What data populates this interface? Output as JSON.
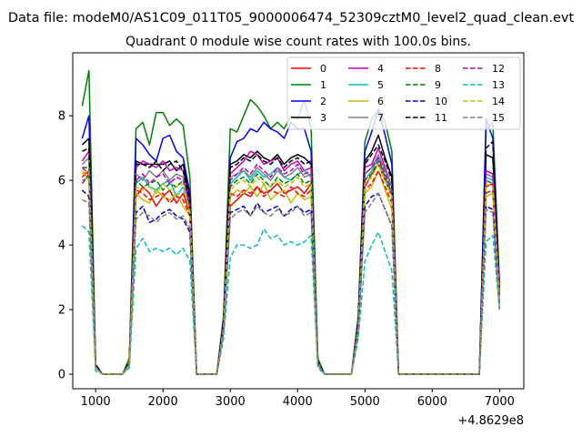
{
  "chart_data": {
    "type": "line",
    "suptitle": "Data file: modeM0/AS1C09_011T05_9000006474_52309cztM0_level2_quad_clean.evt",
    "title": "Quadrant 0 module wise count rates with 100.0s bins.",
    "xlabel": "",
    "ylabel": "",
    "x_offset_label": "+4.8629e8",
    "xlim": [
      660,
      7360
    ],
    "ylim": [
      -0.45,
      9.95
    ],
    "xticks": [
      1000,
      2000,
      3000,
      4000,
      5000,
      6000,
      7000
    ],
    "yticks": [
      0,
      2,
      4,
      6,
      8
    ],
    "grid": false,
    "legend_position": "top-right",
    "legend_columns": 4,
    "x": [
      800,
      900,
      1000,
      1100,
      1200,
      1300,
      1400,
      1500,
      1600,
      1700,
      1800,
      1900,
      2000,
      2100,
      2200,
      2300,
      2400,
      2500,
      2600,
      2700,
      2800,
      2900,
      3000,
      3100,
      3200,
      3300,
      3400,
      3500,
      3600,
      3700,
      3800,
      3900,
      4000,
      4100,
      4200,
      4300,
      4400,
      4500,
      4600,
      4700,
      4800,
      4900,
      5000,
      5100,
      5200,
      5300,
      5400,
      5500,
      5600,
      5700,
      5800,
      5900,
      6000,
      6100,
      6200,
      6300,
      6400,
      6500,
      6600,
      6700,
      6800,
      6900,
      7000
    ],
    "series": [
      {
        "name": "0",
        "color": "#ff0000",
        "dash": "solid",
        "values": [
          6.1,
          6.3,
          0.2,
          0,
          0,
          0,
          0,
          0.3,
          5.5,
          5.8,
          5.6,
          5.2,
          5.5,
          5.7,
          5.3,
          5.6,
          5.0,
          0,
          0,
          0,
          0,
          1.5,
          5.2,
          5.4,
          5.6,
          5.5,
          5.8,
          5.6,
          5.7,
          5.9,
          5.6,
          5.7,
          5.8,
          5.6,
          5.9,
          0.3,
          0,
          0,
          0,
          0,
          0,
          1.5,
          5.8,
          6.2,
          6.5,
          6.0,
          5.5,
          0,
          0,
          0,
          0,
          0,
          0,
          0,
          0,
          0,
          0,
          0,
          0,
          0,
          5.8,
          5.9,
          2.3
        ]
      },
      {
        "name": "1",
        "color": "#008000",
        "dash": "solid",
        "values": [
          8.3,
          9.4,
          0.3,
          0,
          0,
          0,
          0,
          0.5,
          7.6,
          7.8,
          7.1,
          8.1,
          8.1,
          7.7,
          7.9,
          7.7,
          6.1,
          0,
          0,
          0,
          0,
          1.8,
          7.6,
          7.5,
          8.0,
          8.5,
          8.3,
          8.0,
          7.6,
          7.8,
          7.6,
          8.0,
          7.9,
          8.5,
          7.6,
          0.5,
          0,
          0,
          0,
          0,
          0,
          1.8,
          7.2,
          7.9,
          8.2,
          7.8,
          6.9,
          0,
          0,
          0,
          0,
          0,
          0,
          0,
          0,
          0,
          0,
          0,
          0,
          0,
          7.6,
          7.8,
          2.8
        ]
      },
      {
        "name": "2",
        "color": "#0000ff",
        "dash": "solid",
        "values": [
          7.3,
          8.0,
          0.3,
          0,
          0,
          0,
          0,
          0.4,
          7.3,
          7.1,
          6.8,
          6.6,
          7.3,
          7.4,
          6.9,
          6.7,
          5.6,
          0,
          0,
          0,
          0,
          1.7,
          6.7,
          7.2,
          7.3,
          7.6,
          7.5,
          7.8,
          7.6,
          7.5,
          7.3,
          7.8,
          7.6,
          7.6,
          6.9,
          0.4,
          0,
          0,
          0,
          0,
          0,
          1.7,
          6.9,
          7.5,
          8.2,
          7.4,
          6.5,
          0,
          0,
          0,
          0,
          0,
          0,
          0,
          0,
          0,
          0,
          0,
          0,
          0,
          7.9,
          7.3,
          2.6
        ]
      },
      {
        "name": "3",
        "color": "#000000",
        "dash": "solid",
        "values": [
          7.1,
          7.3,
          0.3,
          0,
          0,
          0,
          0,
          0.4,
          6.6,
          6.5,
          6.5,
          6.5,
          6.5,
          6.6,
          6.3,
          6.5,
          5.4,
          0,
          0,
          0,
          0,
          1.6,
          6.5,
          6.6,
          6.8,
          6.7,
          6.9,
          6.7,
          6.6,
          6.8,
          6.5,
          6.7,
          6.8,
          6.7,
          6.5,
          0.4,
          0,
          0,
          0,
          0,
          0,
          1.6,
          6.6,
          6.9,
          7.4,
          6.7,
          6.1,
          0,
          0,
          0,
          0,
          0,
          0,
          0,
          0,
          0,
          0,
          0,
          0,
          0,
          6.8,
          6.7,
          2.5
        ]
      },
      {
        "name": "4",
        "color": "#bf00bf",
        "dash": "solid",
        "values": [
          6.6,
          6.9,
          0.3,
          0,
          0,
          0,
          0,
          0.4,
          6.4,
          6.6,
          6.5,
          6.4,
          6.6,
          6.3,
          6.4,
          6.3,
          5.3,
          0,
          0,
          0,
          0,
          1.6,
          6.2,
          6.4,
          6.6,
          6.9,
          6.8,
          6.5,
          6.6,
          6.7,
          6.3,
          6.5,
          6.6,
          6.3,
          6.4,
          0.4,
          0,
          0,
          0,
          0,
          0,
          1.6,
          6.4,
          6.5,
          7.0,
          6.4,
          5.8,
          0,
          0,
          0,
          0,
          0,
          0,
          0,
          0,
          0,
          0,
          0,
          0,
          0,
          6.3,
          6.2,
          2.4
        ]
      },
      {
        "name": "5",
        "color": "#00bfbf",
        "dash": "solid",
        "values": [
          6.0,
          6.1,
          0.2,
          0,
          0,
          0,
          0,
          0.3,
          5.9,
          6.1,
          5.8,
          5.7,
          5.9,
          6.0,
          5.5,
          5.8,
          5.1,
          0,
          0,
          0,
          0,
          1.5,
          5.9,
          6.1,
          6.3,
          6.0,
          6.3,
          6.1,
          6.2,
          6.4,
          6.1,
          6.0,
          6.2,
          6.3,
          6.1,
          0.3,
          0,
          0,
          0,
          0,
          0,
          1.5,
          6.0,
          6.3,
          6.7,
          6.1,
          5.6,
          0,
          0,
          0,
          0,
          0,
          0,
          0,
          0,
          0,
          0,
          0,
          0,
          0,
          6.1,
          6.0,
          2.3
        ]
      },
      {
        "name": "6",
        "color": "#bfbf00",
        "dash": "solid",
        "values": [
          6.3,
          6.0,
          0.2,
          0,
          0,
          0,
          0,
          0.3,
          5.6,
          5.4,
          5.3,
          5.7,
          5.5,
          5.4,
          5.6,
          5.2,
          4.9,
          0,
          0,
          0,
          0,
          1.4,
          5.5,
          5.7,
          5.6,
          5.8,
          5.5,
          5.9,
          5.4,
          5.6,
          5.7,
          5.3,
          5.6,
          5.4,
          5.5,
          0.3,
          0,
          0,
          0,
          0,
          0,
          1.4,
          5.6,
          5.8,
          6.3,
          5.7,
          5.1,
          0,
          0,
          0,
          0,
          0,
          0,
          0,
          0,
          0,
          0,
          0,
          0,
          0,
          5.5,
          5.6,
          2.2
        ]
      },
      {
        "name": "7",
        "color": "#808080",
        "dash": "solid",
        "values": [
          6.5,
          6.7,
          0.2,
          0,
          0,
          0,
          0,
          0.4,
          6.2,
          6.0,
          6.3,
          6.1,
          6.3,
          6.0,
          6.2,
          6.1,
          5.2,
          0,
          0,
          0,
          0,
          1.5,
          6.1,
          6.2,
          6.3,
          6.1,
          6.4,
          6.2,
          6.0,
          6.3,
          6.1,
          6.2,
          6.4,
          6.1,
          6.2,
          0.4,
          0,
          0,
          0,
          0,
          0,
          1.5,
          6.2,
          6.4,
          6.8,
          6.3,
          5.8,
          0,
          0,
          0,
          0,
          0,
          0,
          0,
          0,
          0,
          0,
          0,
          0,
          0,
          6.2,
          6.1,
          2.4
        ]
      },
      {
        "name": "8",
        "color": "#ff0000",
        "dash": "dashed",
        "values": [
          5.9,
          6.2,
          0.2,
          0,
          0,
          0,
          0,
          0.3,
          5.7,
          5.6,
          5.4,
          5.5,
          5.6,
          5.3,
          5.5,
          5.4,
          4.9,
          0,
          0,
          0,
          0,
          1.4,
          5.6,
          5.5,
          5.7,
          5.6,
          5.8,
          5.5,
          5.7,
          5.6,
          5.5,
          5.8,
          5.6,
          5.5,
          5.7,
          0.3,
          0,
          0,
          0,
          0,
          0,
          1.4,
          5.7,
          5.9,
          6.3,
          5.8,
          5.3,
          0,
          0,
          0,
          0,
          0,
          0,
          0,
          0,
          0,
          0,
          0,
          0,
          0,
          5.6,
          5.7,
          2.2
        ]
      },
      {
        "name": "9",
        "color": "#008000",
        "dash": "dashed",
        "values": [
          6.4,
          6.4,
          0.2,
          0,
          0,
          0,
          0,
          0.3,
          6.0,
          5.8,
          5.9,
          6.0,
          5.7,
          5.9,
          5.8,
          6.0,
          5.1,
          0,
          0,
          0,
          0,
          1.5,
          5.8,
          6.0,
          6.1,
          5.9,
          6.2,
          6.0,
          5.8,
          6.1,
          5.9,
          6.0,
          6.2,
          5.9,
          6.0,
          0.3,
          0,
          0,
          0,
          0,
          0,
          1.5,
          6.0,
          6.2,
          6.6,
          6.1,
          5.6,
          0,
          0,
          0,
          0,
          0,
          0,
          0,
          0,
          0,
          0,
          0,
          0,
          0,
          6.0,
          5.9,
          2.3
        ]
      },
      {
        "name": "10",
        "color": "#0000bf",
        "dash": "dashed",
        "values": [
          5.7,
          5.5,
          0.2,
          0,
          0,
          0,
          0,
          0.3,
          5.0,
          5.2,
          4.7,
          4.8,
          5.0,
          5.1,
          4.9,
          4.8,
          4.4,
          0,
          0,
          0,
          0,
          1.3,
          5.0,
          5.1,
          5.2,
          4.9,
          5.3,
          5.0,
          5.1,
          5.2,
          4.9,
          5.1,
          5.2,
          5.0,
          5.1,
          0.3,
          0,
          0,
          0,
          0,
          0,
          1.3,
          5.2,
          5.5,
          5.6,
          5.1,
          4.6,
          0,
          0,
          0,
          0,
          0,
          0,
          0,
          0,
          0,
          0,
          0,
          0,
          0,
          5.2,
          5.1,
          2.0
        ]
      },
      {
        "name": "11",
        "color": "#000000",
        "dash": "dashed",
        "values": [
          6.9,
          7.0,
          0.3,
          0,
          0,
          0,
          0,
          0.4,
          6.5,
          6.5,
          6.4,
          6.6,
          6.3,
          6.5,
          6.6,
          6.3,
          5.3,
          0,
          0,
          0,
          0,
          1.6,
          6.4,
          6.5,
          6.7,
          6.6,
          6.8,
          6.6,
          6.5,
          6.7,
          6.4,
          6.6,
          6.7,
          6.5,
          6.6,
          0.4,
          0,
          0,
          0,
          0,
          0,
          1.6,
          6.5,
          6.8,
          7.1,
          6.6,
          6.0,
          0,
          0,
          0,
          0,
          0,
          0,
          0,
          0,
          0,
          0,
          0,
          0,
          0,
          7.0,
          7.2,
          2.5
        ]
      },
      {
        "name": "12",
        "color": "#bf00bf",
        "dash": "dashed",
        "values": [
          6.4,
          6.2,
          0.2,
          0,
          0,
          0,
          0,
          0.3,
          6.0,
          6.2,
          5.9,
          6.1,
          6.2,
          5.9,
          6.1,
          6.0,
          5.2,
          0,
          0,
          0,
          0,
          1.5,
          6.0,
          6.2,
          6.4,
          6.2,
          6.5,
          6.3,
          6.1,
          6.4,
          6.2,
          6.3,
          6.5,
          6.2,
          6.3,
          0.3,
          0,
          0,
          0,
          0,
          0,
          1.5,
          6.2,
          6.4,
          6.7,
          6.2,
          5.7,
          0,
          0,
          0,
          0,
          0,
          0,
          0,
          0,
          0,
          0,
          0,
          0,
          0,
          6.3,
          6.2,
          2.4
        ]
      },
      {
        "name": "13",
        "color": "#00bfbf",
        "dash": "dashed",
        "values": [
          4.6,
          4.4,
          0.1,
          0,
          0,
          0,
          0,
          0.2,
          3.9,
          4.2,
          3.8,
          3.9,
          3.8,
          3.9,
          3.7,
          3.9,
          3.5,
          0,
          0,
          0,
          0,
          1.1,
          3.6,
          4.0,
          4.0,
          3.9,
          4.0,
          4.5,
          4.2,
          4.3,
          4.0,
          4.1,
          4.0,
          4.1,
          4.3,
          0.2,
          0,
          0,
          0,
          0,
          0,
          1.1,
          3.5,
          4.0,
          4.4,
          3.8,
          3.2,
          0,
          0,
          0,
          0,
          0,
          0,
          0,
          0,
          0,
          0,
          0,
          0,
          0,
          4.1,
          4.3,
          2.0
        ]
      },
      {
        "name": "14",
        "color": "#bfbf00",
        "dash": "dashed",
        "values": [
          6.2,
          6.3,
          0.2,
          0,
          0,
          0,
          0,
          0.3,
          5.8,
          5.7,
          5.8,
          5.6,
          5.9,
          5.7,
          5.8,
          5.9,
          5.0,
          0,
          0,
          0,
          0,
          1.4,
          5.7,
          5.9,
          6.0,
          5.8,
          6.1,
          5.9,
          5.8,
          6.0,
          5.8,
          5.9,
          6.1,
          5.8,
          5.9,
          0.3,
          0,
          0,
          0,
          0,
          0,
          1.4,
          5.9,
          6.1,
          6.5,
          6.0,
          5.5,
          0,
          0,
          0,
          0,
          0,
          0,
          0,
          0,
          0,
          0,
          0,
          0,
          0,
          5.9,
          5.8,
          2.3
        ]
      },
      {
        "name": "15",
        "color": "#808080",
        "dash": "dashed",
        "values": [
          5.4,
          5.3,
          0.2,
          0,
          0,
          0,
          0,
          0.3,
          4.8,
          5.0,
          4.9,
          4.7,
          4.9,
          5.0,
          4.8,
          4.9,
          4.5,
          0,
          0,
          0,
          0,
          1.3,
          4.8,
          5.0,
          5.1,
          4.9,
          5.2,
          5.0,
          4.9,
          5.1,
          4.9,
          5.0,
          5.2,
          4.9,
          5.0,
          0.3,
          0,
          0,
          0,
          0,
          0,
          1.3,
          5.0,
          5.3,
          5.6,
          5.1,
          4.6,
          0,
          0,
          0,
          0,
          0,
          0,
          0,
          0,
          0,
          0,
          0,
          0,
          0,
          5.1,
          5.0,
          2.0
        ]
      }
    ]
  }
}
